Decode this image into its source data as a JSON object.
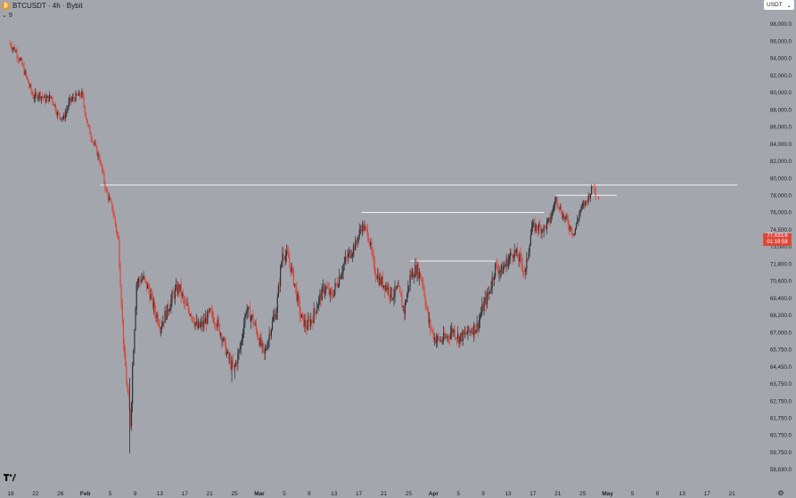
{
  "header": {
    "symbol_icon": "bitcoin-icon",
    "title": "BTCUSDT · 4h · Bybit"
  },
  "indicators": {
    "toggle_icon": "chevron-down-icon",
    "count": "9"
  },
  "currency_select": {
    "value": "USDT",
    "icon": "chevron-down-icon"
  },
  "current_price": {
    "price": "77,433.6",
    "countdown": "01:19:58"
  },
  "logo_icon": "tradingview-logo-icon",
  "settings_icon": "gear-icon",
  "colors": {
    "background": "#a3a6ad",
    "up": "#2f3136",
    "down": "#d9473b",
    "level_line": "#f2f2f2",
    "price_label": "#e0453a"
  },
  "chart_data": {
    "type": "candlestick",
    "symbol": "BTCUSDT",
    "interval": "4h",
    "exchange": "Bybit",
    "y_axis": {
      "position": "right",
      "ylim": [
        59000,
        99500
      ],
      "ticks": [
        "98,000.0",
        "96,000.0",
        "94,000.0",
        "92,000.0",
        "90,000.0",
        "88,000.0",
        "86,000.0",
        "84,000.0",
        "82,000.0",
        "80,000.0",
        "78,000.0",
        "76,000.0",
        "74,500.0",
        "73,000.0",
        "71,800.0",
        "70,600.0",
        "69,400.0",
        "68,200.0",
        "67,000.0",
        "65,750.0",
        "64,450.0",
        "63,750.0",
        "62,750.0",
        "61,750.0",
        "60,750.0",
        "59,750.0",
        "58,830.0"
      ]
    },
    "x_axis": {
      "ticks": [
        "18",
        "22",
        "26",
        "Feb",
        "5",
        "9",
        "13",
        "17",
        "21",
        "25",
        "Mar",
        "5",
        "9",
        "13",
        "17",
        "21",
        "25",
        "Apr",
        "5",
        "9",
        "13",
        "17",
        "21",
        "25",
        "May",
        "5",
        "9",
        "13",
        "17",
        "21"
      ],
      "bold": [
        "Feb",
        "Mar",
        "Apr",
        "May"
      ]
    },
    "series_path": [
      [
        "Jan 18",
        95800
      ],
      [
        "Jan 19",
        95000
      ],
      [
        "Jan 20",
        93500
      ],
      [
        "Jan 21",
        91500
      ],
      [
        "Jan 22",
        89500
      ],
      [
        "Jan 23",
        89800
      ],
      [
        "Jan 24",
        89200
      ],
      [
        "Jan 25",
        89500
      ],
      [
        "Jan 26",
        87500
      ],
      [
        "Jan 27",
        87000
      ],
      [
        "Jan 28",
        89000
      ],
      [
        "Jan 29",
        89500
      ],
      [
        "Jan 30",
        89800
      ],
      [
        "Jan 31",
        86000
      ],
      [
        "Feb 1",
        84000
      ],
      [
        "Feb 2",
        82000
      ],
      [
        "Feb 3",
        78500
      ],
      [
        "Feb 4",
        76500
      ],
      [
        "Feb 5",
        73500
      ],
      [
        "Feb 6",
        65000
      ],
      [
        "Feb 7",
        61500
      ],
      [
        "Feb 8",
        70500
      ],
      [
        "Feb 9",
        70800
      ],
      [
        "Feb 10",
        70000
      ],
      [
        "Feb 11",
        68500
      ],
      [
        "Feb 12",
        67500
      ],
      [
        "Feb 13",
        68500
      ],
      [
        "Feb 14",
        69600
      ],
      [
        "Feb 15",
        70200
      ],
      [
        "Feb 16",
        68800
      ],
      [
        "Feb 17",
        68400
      ],
      [
        "Feb 18",
        67300
      ],
      [
        "Feb 19",
        67600
      ],
      [
        "Feb 20",
        68300
      ],
      [
        "Feb 21",
        67900
      ],
      [
        "Feb 22",
        66800
      ],
      [
        "Feb 23",
        65200
      ],
      [
        "Feb 24",
        64200
      ],
      [
        "Feb 25",
        65800
      ],
      [
        "Feb 26",
        68600
      ],
      [
        "Feb 27",
        68000
      ],
      [
        "Feb 28",
        66700
      ],
      [
        "Mar 1",
        65300
      ],
      [
        "Mar 2",
        67200
      ],
      [
        "Mar 3",
        68600
      ],
      [
        "Mar 4",
        72600
      ],
      [
        "Mar 5",
        72200
      ],
      [
        "Mar 6",
        70400
      ],
      [
        "Mar 7",
        68100
      ],
      [
        "Mar 8",
        67400
      ],
      [
        "Mar 9",
        68100
      ],
      [
        "Mar 10",
        69300
      ],
      [
        "Mar 11",
        70200
      ],
      [
        "Mar 12",
        69500
      ],
      [
        "Mar 13",
        70500
      ],
      [
        "Mar 14",
        71700
      ],
      [
        "Mar 15",
        72500
      ],
      [
        "Mar 16",
        73200
      ],
      [
        "Mar 17",
        74800
      ],
      [
        "Mar 18",
        74300
      ],
      [
        "Mar 19",
        71600
      ],
      [
        "Mar 20",
        70600
      ],
      [
        "Mar 21",
        70300
      ],
      [
        "Mar 22",
        69600
      ],
      [
        "Mar 23",
        70000
      ],
      [
        "Mar 24",
        68500
      ],
      [
        "Mar 25",
        70900
      ],
      [
        "Mar 26",
        71500
      ],
      [
        "Mar 27",
        70700
      ],
      [
        "Mar 28",
        67800
      ],
      [
        "Mar 29",
        66600
      ],
      [
        "Mar 30",
        66400
      ],
      [
        "Mar 31",
        66600
      ],
      [
        "Apr 1",
        67200
      ],
      [
        "Apr 2",
        66600
      ],
      [
        "Apr 3",
        66800
      ],
      [
        "Apr 4",
        67200
      ],
      [
        "Apr 5",
        67400
      ],
      [
        "Apr 6",
        68800
      ],
      [
        "Apr 7",
        69800
      ],
      [
        "Apr 8",
        71600
      ],
      [
        "Apr 9",
        71300
      ],
      [
        "Apr 10",
        72000
      ],
      [
        "Apr 11",
        72700
      ],
      [
        "Apr 12",
        72100
      ],
      [
        "Apr 13",
        71200
      ],
      [
        "Apr 14",
        74700
      ],
      [
        "Apr 15",
        74700
      ],
      [
        "Apr 16",
        74600
      ],
      [
        "Apr 17",
        75300
      ],
      [
        "Apr 18",
        77600
      ],
      [
        "Apr 19",
        75900
      ],
      [
        "Apr 20",
        75000
      ],
      [
        "Apr 21",
        74200
      ],
      [
        "Apr 22",
        76300
      ],
      [
        "Apr 23",
        77300
      ],
      [
        "Apr 24",
        78900
      ],
      [
        "Apr 25",
        77400
      ]
    ],
    "horizontal_levels": [
      {
        "price": 79200,
        "from": "Feb 2",
        "to": "May 21"
      },
      {
        "price": 78000,
        "from": "Apr 18",
        "to": "Apr 28"
      },
      {
        "price": 76000,
        "from": "Mar 17",
        "to": "Apr 16"
      },
      {
        "price": 72000,
        "from": "Mar 25",
        "to": "Apr 8"
      }
    ],
    "last_price": 77433.6
  }
}
